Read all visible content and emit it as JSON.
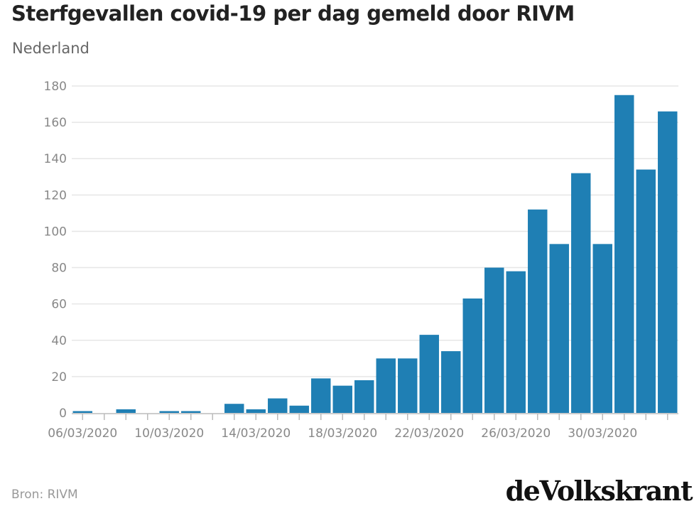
{
  "header": {
    "title": "Sterfgevallen covid-19 per dag gemeld door RIVM",
    "subtitle": "Nederland"
  },
  "footer": {
    "source": "Bron: RIVM",
    "logo": "deVolkskrant"
  },
  "colors": {
    "bar": "#1f7fb4",
    "grid": "#e6e6e6",
    "axis": "#bbbbbb"
  },
  "chart_data": {
    "type": "bar",
    "title": "Sterfgevallen covid-19 per dag gemeld door RIVM",
    "subtitle": "Nederland",
    "xlabel": "",
    "ylabel": "",
    "ylim": [
      0,
      180
    ],
    "yticks": [
      0,
      20,
      40,
      60,
      80,
      100,
      120,
      140,
      160,
      180
    ],
    "grid": true,
    "legend": "none",
    "categories": [
      "06/03/2020",
      "07/03/2020",
      "08/03/2020",
      "09/03/2020",
      "10/03/2020",
      "11/03/2020",
      "12/03/2020",
      "13/03/2020",
      "14/03/2020",
      "15/03/2020",
      "16/03/2020",
      "17/03/2020",
      "18/03/2020",
      "19/03/2020",
      "20/03/2020",
      "21/03/2020",
      "22/03/2020",
      "23/03/2020",
      "24/03/2020",
      "25/03/2020",
      "26/03/2020",
      "27/03/2020",
      "28/03/2020",
      "29/03/2020",
      "30/03/2020",
      "31/03/2020",
      "01/04/2020",
      "02/04/2020"
    ],
    "x_tick_labels": [
      "06/03/2020",
      "10/03/2020",
      "14/03/2020",
      "18/03/2020",
      "22/03/2020",
      "26/03/2020",
      "30/03/2020"
    ],
    "values": [
      1,
      0,
      2,
      0,
      1,
      1,
      0,
      5,
      2,
      8,
      4,
      19,
      15,
      18,
      30,
      30,
      43,
      34,
      63,
      80,
      78,
      112,
      93,
      132,
      93,
      175,
      134,
      166
    ]
  }
}
